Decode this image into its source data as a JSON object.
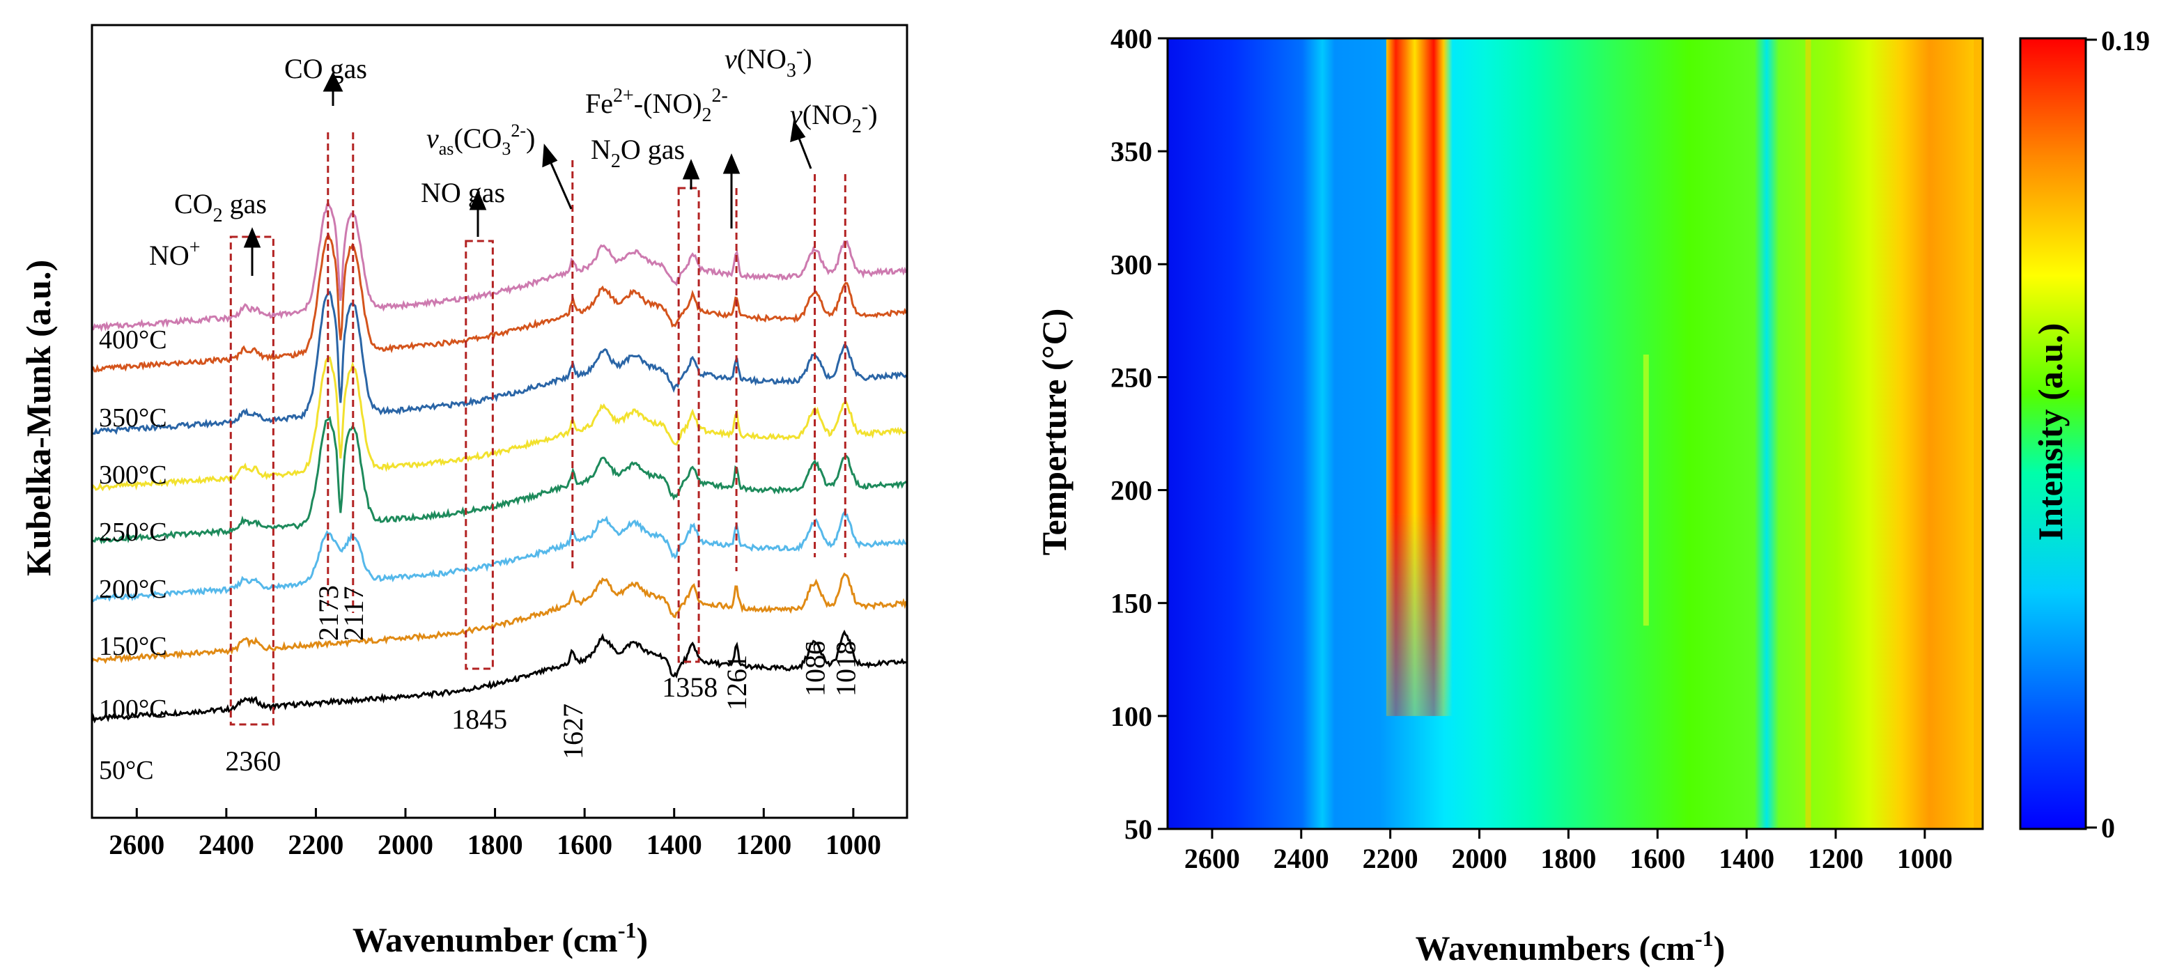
{
  "chart_data": [
    {
      "type": "line",
      "panel": "left",
      "xlabel": "Wavenumber (cm",
      "xlabel_sup": "-1",
      "xlabel_tail": ")",
      "ylabel": "Kubelka-Munk (a.u.)",
      "xlim": [
        2700,
        880
      ],
      "xaxis_reversed": true,
      "xticks": [
        2600,
        2400,
        2200,
        2000,
        1800,
        1600,
        1400,
        1200,
        1000
      ],
      "series": [
        {
          "name": "50°C",
          "color": "#000000"
        },
        {
          "name": "100°C",
          "color": "#E08A14"
        },
        {
          "name": "150°C",
          "color": "#55B8EA"
        },
        {
          "name": "200°C",
          "color": "#1D8A5B"
        },
        {
          "name": "250°C",
          "color": "#F2E12E"
        },
        {
          "name": "300°C",
          "color": "#2A65A6"
        },
        {
          "name": "350°C",
          "color": "#D4541C"
        },
        {
          "name": "400°C",
          "color": "#CD7AAF"
        }
      ],
      "peak_labels": [
        "2360",
        "2173",
        "2117",
        "1845",
        "1627",
        "1358",
        "1261",
        "1086",
        "1018"
      ],
      "annotations": {
        "co_gas": "CO gas",
        "co2_gas_1": "CO",
        "co2_gas_sub": "2",
        "co2_gas_2": " gas",
        "no_plus": "NO",
        "no_plus_sup": "+",
        "no_gas": "NO gas",
        "vas_v": "v",
        "vas_sub": "as",
        "vas_body": "(CO",
        "vas_sub2": "3",
        "vas_sup2": "2-",
        "vas_end": ")",
        "fe_1": "Fe",
        "fe_sup": "2+",
        "fe_2": "-(NO)",
        "fe_sub": "2",
        "fe_sup2": "2-",
        "n2o_1": "N",
        "n2o_sub": "2",
        "n2o_2": "O gas",
        "vno3_v": "v",
        "vno3_body": "(NO",
        "vno3_sub": "3",
        "vno3_sup": "-",
        "vno3_end": ")",
        "vno2_v": "v",
        "vno2_body": "(NO",
        "vno2_sub": "2",
        "vno2_sup": "-",
        "vno2_end": ")"
      }
    },
    {
      "type": "heatmap",
      "panel": "right",
      "xlabel": "Wavenumbers (cm",
      "xlabel_sup": "-1",
      "xlabel_tail": ")",
      "ylabel": "Temperture (°C)",
      "xlim": [
        2700,
        870
      ],
      "ylim": [
        50,
        400
      ],
      "xticks": [
        2600,
        2400,
        2200,
        2000,
        1800,
        1600,
        1400,
        1200,
        1000
      ],
      "yticks": [
        50,
        100,
        150,
        200,
        250,
        300,
        350,
        400
      ],
      "colorbar": {
        "label": "Intensity (a.u.)",
        "min": 0,
        "max": 0.19,
        "min_label": "0",
        "max_label": "0.19"
      }
    }
  ]
}
